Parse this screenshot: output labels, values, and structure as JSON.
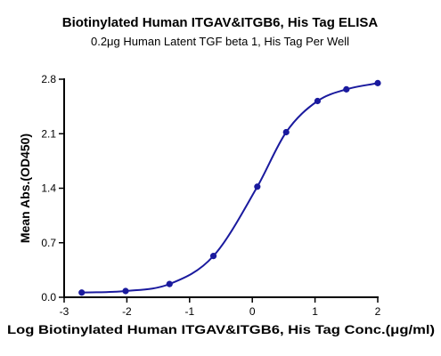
{
  "chart_data": {
    "type": "line",
    "title": "Biotinylated Human ITGAV&ITGB6, His Tag ELISA",
    "subtitle": "0.2μg Human Latent TGF beta 1, His Tag Per Well",
    "xlabel": "Log Biotinylated Human ITGAV&ITGB6, His Tag Conc.(μg/ml)",
    "ylabel": "Mean Abs.(OD450)",
    "xlim": [
      -3,
      2
    ],
    "ylim": [
      0.0,
      2.8
    ],
    "x_ticks": [
      -3,
      -2,
      -1,
      0,
      1,
      2
    ],
    "y_ticks": [
      0.0,
      0.7,
      1.4,
      2.1,
      2.8
    ],
    "x_tick_labels": [
      "-3",
      "-2",
      "-1",
      "0",
      "1",
      "2"
    ],
    "y_tick_labels": [
      "0.0",
      "0.7",
      "1.4",
      "2.1",
      "2.8"
    ],
    "grid": false,
    "color": "#1a1a9e",
    "series": [
      {
        "x": [
          -2.72,
          -2.02,
          -1.32,
          -0.62,
          0.08,
          0.54,
          1.04,
          1.5,
          2.0
        ],
        "y": [
          0.06,
          0.08,
          0.17,
          0.53,
          1.42,
          2.12,
          2.52,
          2.67,
          2.75
        ]
      }
    ]
  }
}
